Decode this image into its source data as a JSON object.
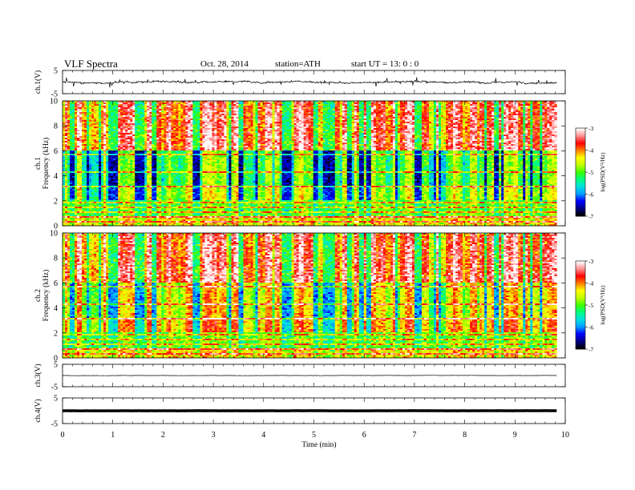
{
  "header": {
    "title": "VLF  Spectra",
    "date": "Oct. 28, 2014",
    "station": "station=ATH",
    "start_time": "start  UT  =    13: 0   : 0"
  },
  "chart_data": [
    {
      "id": "ch1_waveform",
      "type": "line",
      "ylabel": "ch.1(V)",
      "ylim": [
        -5,
        5
      ],
      "yticks": [
        "5",
        "-5"
      ],
      "xlim": [
        0,
        10
      ],
      "data_extent": [
        0,
        9.83
      ],
      "baseline": 0,
      "noise_amplitude": 0.9,
      "grid": false
    },
    {
      "id": "ch1_spectrogram",
      "type": "heatmap",
      "ylabel_channel": "ch.1",
      "ylabel": "Frequency  (kHz)",
      "ylim": [
        0,
        10
      ],
      "yticks": [
        "0",
        "2",
        "4",
        "6",
        "8",
        "10"
      ],
      "xlim": [
        0,
        10
      ],
      "data_extent": [
        0,
        9.83
      ],
      "colorbar": {
        "label": "log(PSD(V²/Hz)",
        "range": [
          -7,
          -3
        ],
        "ticks": [
          "-3",
          "-4",
          "-5",
          "-6",
          "-7"
        ],
        "colormap": [
          "#000000",
          "#00008b",
          "#0000ff",
          "#00a0ff",
          "#00e0e0",
          "#00ff80",
          "#40ff00",
          "#c0ff00",
          "#ffff00",
          "#ff8000",
          "#ff0000",
          "#ff9090",
          "#ffffff"
        ]
      },
      "grid": false
    },
    {
      "id": "ch2_spectrogram",
      "type": "heatmap",
      "ylabel_channel": "ch.2",
      "ylabel": "Frequency  (kHz)",
      "ylim": [
        0,
        10
      ],
      "yticks": [
        "0",
        "2",
        "4",
        "6",
        "8",
        "10"
      ],
      "xlim": [
        0,
        10
      ],
      "data_extent": [
        0,
        9.83
      ],
      "colorbar": {
        "label": "log(PSD(V²/Hz)",
        "range": [
          -7,
          -3
        ],
        "ticks": [
          "-3",
          "-4",
          "-5",
          "-6",
          "-7"
        ],
        "colormap": [
          "#000000",
          "#00008b",
          "#0000ff",
          "#00a0ff",
          "#00e0e0",
          "#00ff80",
          "#40ff00",
          "#c0ff00",
          "#ffff00",
          "#ff8000",
          "#ff0000",
          "#ff9090",
          "#ffffff"
        ]
      },
      "grid": false
    },
    {
      "id": "ch3_waveform",
      "type": "line",
      "ylabel": "ch.3(V)",
      "ylim": [
        -5,
        5
      ],
      "yticks": [
        "5",
        "-5"
      ],
      "xlim": [
        0,
        10
      ],
      "data_extent": [
        0,
        9.83
      ],
      "baseline": 0,
      "noise_amplitude": 0.15,
      "grid": false
    },
    {
      "id": "ch4_waveform",
      "type": "line",
      "ylabel": "ch.4(V)",
      "ylim": [
        -5,
        5
      ],
      "yticks": [
        "5",
        "-5"
      ],
      "xlim": [
        0,
        10
      ],
      "data_extent": [
        0,
        9.83
      ],
      "baseline": 0,
      "noise_amplitude": 0.05,
      "grid": false
    }
  ],
  "xaxis": {
    "label": "Time  (min)",
    "range": [
      0,
      10
    ],
    "ticks": [
      "0",
      "1",
      "2",
      "3",
      "4",
      "5",
      "6",
      "7",
      "8",
      "9",
      "10"
    ]
  }
}
